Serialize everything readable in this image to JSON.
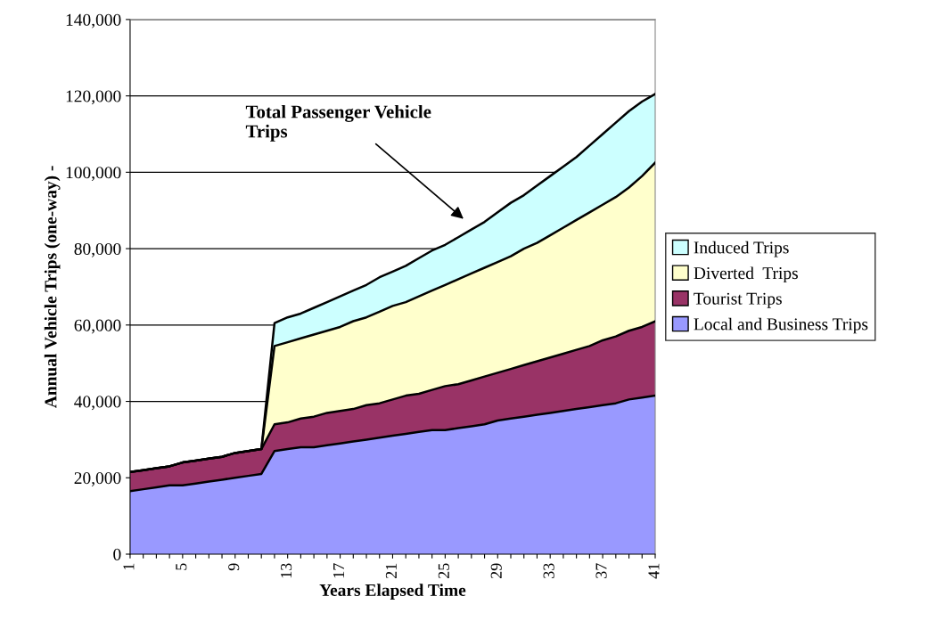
{
  "chart_data": {
    "type": "area",
    "stacked": true,
    "xlabel": "Years Elapsed Time",
    "ylabel": "Annual Vehicle Trips (one-way) -",
    "categories": [
      "1",
      null,
      null,
      null,
      "5",
      null,
      null,
      null,
      "9",
      null,
      null,
      null,
      "13",
      null,
      null,
      null,
      "17",
      null,
      null,
      null,
      "21",
      null,
      null,
      null,
      "25",
      null,
      null,
      null,
      "29",
      null,
      null,
      null,
      "33",
      null,
      null,
      null,
      "37",
      null,
      null,
      null,
      "41"
    ],
    "series": [
      {
        "name": "Local and Business Trips",
        "color": "#9999ff",
        "values": [
          16500,
          17000,
          17500,
          18000,
          18000,
          18500,
          19000,
          19500,
          20000,
          20500,
          21000,
          27000,
          27500,
          28000,
          28000,
          28500,
          29000,
          29500,
          30000,
          30500,
          31000,
          31500,
          32000,
          32500,
          32500,
          33000,
          33500,
          34000,
          35000,
          35500,
          36000,
          36500,
          37000,
          37500,
          38000,
          38500,
          39000,
          39500,
          40500,
          41000,
          41500
        ]
      },
      {
        "name": "Tourist Trips",
        "color": "#993366",
        "values": [
          5000,
          5000,
          5000,
          5000,
          6000,
          6000,
          6000,
          6000,
          6500,
          6500,
          6500,
          7000,
          7000,
          7500,
          8000,
          8500,
          8500,
          8500,
          9000,
          9000,
          9500,
          10000,
          10000,
          10500,
          11500,
          11500,
          12000,
          12500,
          12500,
          13000,
          13500,
          14000,
          14500,
          15000,
          15500,
          16000,
          17000,
          17500,
          18000,
          18500,
          19500
        ]
      },
      {
        "name": "Diverted  Trips",
        "color": "#ffffcc",
        "values": [
          0,
          0,
          0,
          0,
          0,
          0,
          0,
          0,
          0,
          0,
          0,
          20500,
          21000,
          21000,
          21500,
          21500,
          22000,
          23000,
          23000,
          24000,
          24500,
          24500,
          25500,
          26000,
          26500,
          27500,
          28000,
          28500,
          29000,
          29500,
          30500,
          31000,
          32000,
          33000,
          34000,
          35000,
          35500,
          36500,
          37500,
          39500,
          41500
        ]
      },
      {
        "name": "Induced Trips",
        "color": "#ccffff",
        "values": [
          0,
          0,
          0,
          0,
          0,
          0,
          0,
          0,
          0,
          0,
          0,
          6000,
          6500,
          6500,
          7000,
          7500,
          8000,
          8000,
          8500,
          9000,
          9000,
          9500,
          10000,
          10500,
          10500,
          11000,
          11500,
          12000,
          13000,
          14000,
          14000,
          15000,
          15500,
          16000,
          16500,
          17500,
          18500,
          19500,
          20000,
          19500,
          18000
        ]
      }
    ],
    "ylim": [
      0,
      140000
    ],
    "yticks": [
      0,
      {
        "value": 20000,
        "label": "20,000"
      },
      {
        "value": 40000,
        "label": "40,000"
      },
      {
        "value": 60000,
        "label": "60,000"
      },
      {
        "value": 80000,
        "label": "80,000"
      },
      {
        "value": 100000,
        "label": "100,000"
      },
      {
        "value": 120000,
        "label": "120,000"
      },
      {
        "value": 140000,
        "label": "140,000"
      }
    ],
    "grid": "y",
    "legend": "right",
    "annotations": [
      "Total Passenger Vehicle\nTrips"
    ]
  }
}
